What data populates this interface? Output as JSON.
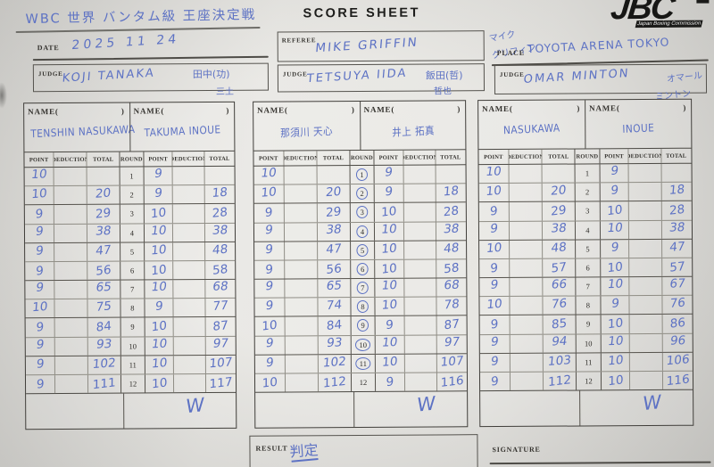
{
  "title_handwritten": "WBC 世界 バンタム級 王座決定戦",
  "sheet_title": "SCORE SHEET",
  "logo": {
    "name": "JBC",
    "caption": "Japan Boxing Commission"
  },
  "fields": {
    "date": {
      "label": "DATE",
      "value": "2025  11 24"
    },
    "referee": {
      "label": "REFEREE",
      "value": "MIKE GRIFFIN",
      "kana_line1": "マイク",
      "kana_line2": "グリフィン"
    },
    "place": {
      "label": "PLACE",
      "value": "TOYOTA ARENA TOKYO"
    },
    "judge1": {
      "label": "JUDGE",
      "value": "KOJI TANAKA",
      "kanji_line1": "田中(功)",
      "kanji_line2": "三土"
    },
    "judge2": {
      "label": "JUDGE",
      "value": "TETSUYA IIDA",
      "kanji_line1": "飯田(哲)",
      "kanji_line2": "哲也"
    },
    "judge3": {
      "label": "JUDGE",
      "value": "OMAR MINTON",
      "kana_line1": "オマール",
      "kana_line2": "ミントン"
    }
  },
  "table_template": {
    "name_label_open": "NAME(",
    "name_label_close": ")",
    "columns": [
      "POINT",
      "DEDUCTION",
      "TOTAL",
      "ROUND",
      "POINT",
      "DEDUCTION",
      "TOTAL"
    ]
  },
  "score_tables": [
    {
      "judge": "KOJI TANAKA",
      "fighter_a": "TENSHIN NASUKAWA",
      "fighter_b": "TAKUMA INOUE",
      "winner_mark": "W",
      "rounds": [
        {
          "round": "1",
          "circled": false,
          "a_point": "10",
          "a_total": "",
          "b_point": "9",
          "b_total": ""
        },
        {
          "round": "2",
          "circled": false,
          "a_point": "10",
          "a_total": "20",
          "b_point": "9",
          "b_total": "18"
        },
        {
          "round": "3",
          "circled": false,
          "a_point": "9",
          "a_total": "29",
          "b_point": "10",
          "b_total": "28"
        },
        {
          "round": "4",
          "circled": false,
          "a_point": "9",
          "a_total": "38",
          "b_point": "10",
          "b_total": "38"
        },
        {
          "round": "5",
          "circled": false,
          "a_point": "9",
          "a_total": "47",
          "b_point": "10",
          "b_total": "48"
        },
        {
          "round": "6",
          "circled": false,
          "a_point": "9",
          "a_total": "56",
          "b_point": "10",
          "b_total": "58"
        },
        {
          "round": "7",
          "circled": false,
          "a_point": "9",
          "a_total": "65",
          "b_point": "10",
          "b_total": "68"
        },
        {
          "round": "8",
          "circled": false,
          "a_point": "10",
          "a_total": "75",
          "b_point": "9",
          "b_total": "77"
        },
        {
          "round": "9",
          "circled": false,
          "a_point": "9",
          "a_total": "84",
          "b_point": "10",
          "b_total": "87"
        },
        {
          "round": "10",
          "circled": false,
          "a_point": "9",
          "a_total": "93",
          "b_point": "10",
          "b_total": "97"
        },
        {
          "round": "11",
          "circled": false,
          "a_point": "9",
          "a_total": "102",
          "b_point": "10",
          "b_total": "107"
        },
        {
          "round": "12",
          "circled": false,
          "a_point": "9",
          "a_total": "111",
          "b_point": "10",
          "b_total": "117"
        }
      ]
    },
    {
      "judge": "TETSUYA IIDA",
      "fighter_a": "那須川 天心",
      "fighter_b": "井上 拓真",
      "winner_mark": "W",
      "rounds": [
        {
          "round": "1",
          "circled": true,
          "a_point": "10",
          "a_total": "",
          "b_point": "9",
          "b_total": ""
        },
        {
          "round": "2",
          "circled": true,
          "a_point": "10",
          "a_total": "20",
          "b_point": "9",
          "b_total": "18"
        },
        {
          "round": "3",
          "circled": true,
          "a_point": "9",
          "a_total": "29",
          "b_point": "10",
          "b_total": "28"
        },
        {
          "round": "4",
          "circled": true,
          "a_point": "9",
          "a_total": "38",
          "b_point": "10",
          "b_total": "38"
        },
        {
          "round": "5",
          "circled": true,
          "a_point": "9",
          "a_total": "47",
          "b_point": "10",
          "b_total": "48"
        },
        {
          "round": "6",
          "circled": true,
          "a_point": "9",
          "a_total": "56",
          "b_point": "10",
          "b_total": "58"
        },
        {
          "round": "7",
          "circled": true,
          "a_point": "9",
          "a_total": "65",
          "b_point": "10",
          "b_total": "68"
        },
        {
          "round": "8",
          "circled": true,
          "a_point": "9",
          "a_total": "74",
          "b_point": "10",
          "b_total": "78"
        },
        {
          "round": "9",
          "circled": true,
          "a_point": "10",
          "a_total": "84",
          "b_point": "9",
          "b_total": "87"
        },
        {
          "round": "10",
          "circled": true,
          "a_point": "9",
          "a_total": "93",
          "b_point": "10",
          "b_total": "97"
        },
        {
          "round": "11",
          "circled": true,
          "a_point": "9",
          "a_total": "102",
          "b_point": "10",
          "b_total": "107"
        },
        {
          "round": "12",
          "circled": false,
          "a_point": "10",
          "a_total": "112",
          "b_point": "9",
          "b_total": "116"
        }
      ]
    },
    {
      "judge": "OMAR MINTON",
      "fighter_a": "NASUKAWA",
      "fighter_b": "INOUE",
      "winner_mark": "W",
      "rounds": [
        {
          "round": "1",
          "circled": false,
          "a_point": "10",
          "a_total": "",
          "b_point": "9",
          "b_total": ""
        },
        {
          "round": "2",
          "circled": false,
          "a_point": "10",
          "a_total": "20",
          "b_point": "9",
          "b_total": "18"
        },
        {
          "round": "3",
          "circled": false,
          "a_point": "9",
          "a_total": "29",
          "b_point": "10",
          "b_total": "28"
        },
        {
          "round": "4",
          "circled": false,
          "a_point": "9",
          "a_total": "38",
          "b_point": "10",
          "b_total": "38"
        },
        {
          "round": "5",
          "circled": false,
          "a_point": "10",
          "a_total": "48",
          "b_point": "9",
          "b_total": "47"
        },
        {
          "round": "6",
          "circled": false,
          "a_point": "9",
          "a_total": "57",
          "b_point": "10",
          "b_total": "57"
        },
        {
          "round": "7",
          "circled": false,
          "a_point": "9",
          "a_total": "66",
          "b_point": "10",
          "b_total": "67"
        },
        {
          "round": "8",
          "circled": false,
          "a_point": "10",
          "a_total": "76",
          "b_point": "9",
          "b_total": "76"
        },
        {
          "round": "9",
          "circled": false,
          "a_point": "9",
          "a_total": "85",
          "b_point": "10",
          "b_total": "86"
        },
        {
          "round": "10",
          "circled": false,
          "a_point": "9",
          "a_total": "94",
          "b_point": "10",
          "b_total": "96"
        },
        {
          "round": "11",
          "circled": false,
          "a_point": "9",
          "a_total": "103",
          "b_point": "10",
          "b_total": "106"
        },
        {
          "round": "12",
          "circled": false,
          "a_point": "9",
          "a_total": "112",
          "b_point": "10",
          "b_total": "116"
        }
      ]
    }
  ],
  "result": {
    "label": "RESULT",
    "value": "判定"
  },
  "signature": {
    "label": "SIGNATURE"
  }
}
